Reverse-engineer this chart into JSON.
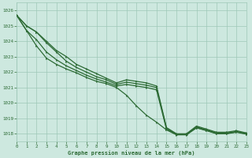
{
  "title": "Graphe pression niveau de la mer (hPa)",
  "background_color": "#cde8df",
  "grid_color": "#9ec8b8",
  "line_color": "#2d6b35",
  "xlim": [
    0,
    23
  ],
  "ylim": [
    1017.5,
    1026.5
  ],
  "yticks": [
    1018,
    1019,
    1020,
    1021,
    1022,
    1023,
    1024,
    1025,
    1026
  ],
  "xticks": [
    0,
    1,
    2,
    3,
    4,
    5,
    6,
    7,
    8,
    9,
    10,
    11,
    12,
    13,
    14,
    15,
    16,
    17,
    18,
    19,
    20,
    21,
    22,
    23
  ],
  "series": [
    [
      1025.7,
      1025.0,
      1024.6,
      1024.0,
      1023.4,
      1023.0,
      1022.5,
      1022.2,
      1021.9,
      1021.6,
      1021.3,
      1021.5,
      1021.4,
      1021.3,
      1021.1,
      1018.4,
      1018.0,
      1018.0,
      1018.5,
      1018.3,
      1018.1,
      1018.1,
      1018.2,
      1018.05
    ],
    [
      1025.7,
      1025.0,
      1024.6,
      1023.9,
      1023.3,
      1022.7,
      1022.3,
      1022.0,
      1021.7,
      1021.5,
      1021.2,
      1021.35,
      1021.25,
      1021.15,
      1021.0,
      1018.35,
      1017.98,
      1017.98,
      1018.45,
      1018.25,
      1018.05,
      1018.05,
      1018.15,
      1018.02
    ],
    [
      1025.7,
      1024.7,
      1024.1,
      1023.3,
      1022.8,
      1022.4,
      1022.1,
      1021.8,
      1021.55,
      1021.35,
      1021.1,
      1021.2,
      1021.1,
      1021.0,
      1020.85,
      1018.28,
      1017.95,
      1017.95,
      1018.4,
      1018.22,
      1018.02,
      1018.02,
      1018.12,
      1017.99
    ],
    [
      1025.7,
      1024.7,
      1023.7,
      1022.9,
      1022.5,
      1022.2,
      1021.95,
      1021.65,
      1021.4,
      1021.25,
      1021.0,
      1020.5,
      1019.8,
      1019.2,
      1018.75,
      1018.25,
      1017.93,
      1017.93,
      1018.38,
      1018.2,
      1018.0,
      1018.0,
      1018.1,
      1017.97
    ]
  ]
}
